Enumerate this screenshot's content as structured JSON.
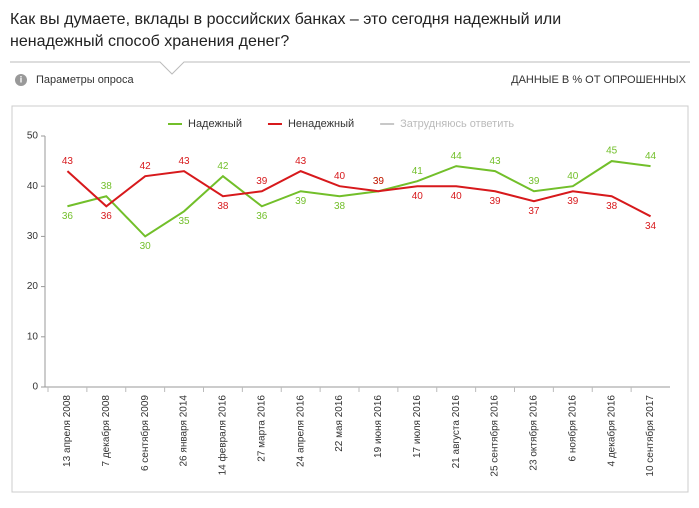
{
  "info_icon": "i",
  "survey_params": "Параметры опроса",
  "units_note": "ДАННЫЕ В % ОТ ОПРОШЕННЫХ",
  "chart_data": {
    "type": "line",
    "title": [
      "Как вы думаете, вклады в российских банках – это сегодня надежный или",
      "ненадежный способ хранения денег?"
    ],
    "categories": [
      "13 апреля 2008",
      "7 декабря 2008",
      "6 сентября 2009",
      "26 января 2014",
      "14 февраля 2016",
      "27 марта 2016",
      "24 апреля 2016",
      "22 мая 2016",
      "19 июня 2016",
      "17 июля 2016",
      "21 августа 2016",
      "25 сентября 2016",
      "23 октября 2016",
      "6 ноября 2016",
      "4 декабря 2016",
      "10 сентября 2017"
    ],
    "series": [
      {
        "name": "Надежный",
        "color": "#72bf2a",
        "values": [
          36,
          38,
          30,
          35,
          42,
          36,
          39,
          38,
          39,
          41,
          44,
          43,
          39,
          40,
          45,
          44
        ]
      },
      {
        "name": "Ненадежный",
        "color": "#d7191c",
        "values": [
          43,
          36,
          42,
          43,
          38,
          39,
          43,
          40,
          39,
          40,
          40,
          39,
          37,
          39,
          38,
          34
        ]
      }
    ],
    "legend_inactive": [
      {
        "name": "Затрудняюсь ответить",
        "color": "#c8c8c8"
      }
    ],
    "ylim": [
      0,
      50
    ],
    "yticks": [
      0,
      10,
      20,
      30,
      40,
      50
    ]
  }
}
